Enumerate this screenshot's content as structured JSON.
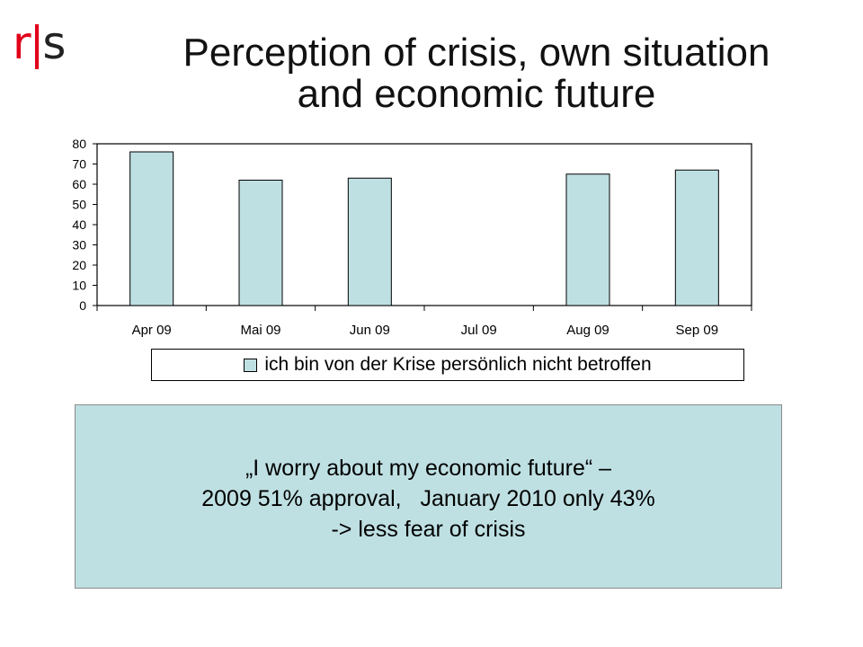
{
  "logo": {
    "text_r": "r",
    "text_bar": "|",
    "text_s": "s"
  },
  "title": {
    "line1": "Perception of crisis, own situation",
    "line2": "and economic future"
  },
  "chart_data": {
    "type": "bar",
    "categories": [
      "Apr 09",
      "Mai 09",
      "Jun 09",
      "Jul 09",
      "Aug 09",
      "Sep 09"
    ],
    "series": [
      {
        "name": "ich bin von der Krise persönlich nicht betroffen",
        "values": [
          76,
          62,
          63,
          null,
          65,
          67
        ]
      }
    ],
    "yticks": [
      "0",
      "10",
      "20",
      "30",
      "40",
      "50",
      "60",
      "70",
      "80"
    ],
    "ylim": [
      0,
      80
    ],
    "xlabel": "",
    "ylabel": "",
    "grid": false,
    "legend_position": "bottom",
    "bar_color": "#bfe0e3"
  },
  "legend": {
    "label": "ich bin von der Krise persönlich nicht betroffen"
  },
  "quote": {
    "line1": "„I worry about my economic future“ –",
    "line2": "2009 51% approval,   January 2010 only 43%",
    "line3": "-> less fear of crisis"
  }
}
